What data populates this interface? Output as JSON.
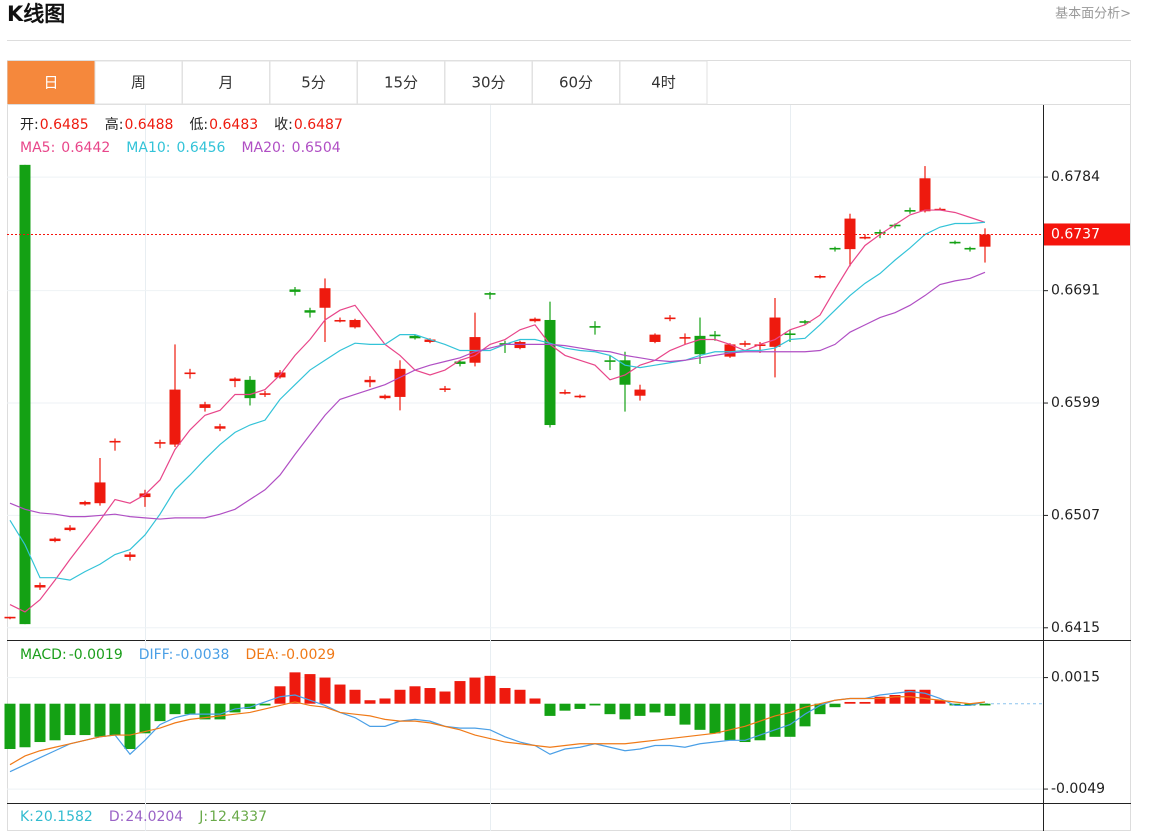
{
  "header": {
    "title": "K线图",
    "link": "基本面分析>"
  },
  "tabs": [
    "日",
    "周",
    "月",
    "5分",
    "15分",
    "30分",
    "60分",
    "4时"
  ],
  "chart_data": [
    {
      "type": "candlestick",
      "legend": [
        {
          "label": "开:",
          "value": 0.6485
        },
        {
          "label": "高:",
          "value": 0.6488
        },
        {
          "label": "低:",
          "value": 0.6483
        },
        {
          "label": "收:",
          "value": 0.6487
        }
      ],
      "open": [
        0.6423,
        0.6794,
        0.6448,
        0.6486,
        0.6495,
        0.6516,
        0.6517,
        0.6567,
        0.6473,
        0.6522,
        0.6566,
        0.6565,
        0.6623,
        0.6595,
        0.6578,
        0.6617,
        0.6618,
        0.6606,
        0.662,
        0.6692,
        0.6675,
        0.6677,
        0.6666,
        0.6661,
        0.6616,
        0.6603,
        0.6604,
        0.6654,
        0.6649,
        0.661,
        0.6633,
        0.6632,
        0.6689,
        0.6648,
        0.6644,
        0.6666,
        0.6667,
        0.6607,
        0.6604,
        0.6662,
        0.6634,
        0.6634,
        0.6605,
        0.6649,
        0.6668,
        0.6652,
        0.6654,
        0.6655,
        0.6637,
        0.6647,
        0.6646,
        0.6645,
        0.6656,
        0.6666,
        0.6702,
        0.6726,
        0.6725,
        0.6734,
        0.6739,
        0.6745,
        0.6757,
        0.6756,
        0.6757,
        0.6731,
        0.6726,
        0.6727
      ],
      "high": [
        0.6424,
        0.6794,
        0.6452,
        0.6489,
        0.6499,
        0.6519,
        0.6554,
        0.657,
        0.6477,
        0.6528,
        0.6569,
        0.6647,
        0.6627,
        0.66,
        0.6582,
        0.662,
        0.6621,
        0.6609,
        0.6626,
        0.6694,
        0.6677,
        0.6701,
        0.6669,
        0.6668,
        0.6621,
        0.6606,
        0.6634,
        0.6655,
        0.6652,
        0.6613,
        0.6634,
        0.6673,
        0.669,
        0.665,
        0.665,
        0.6669,
        0.6682,
        0.661,
        0.6606,
        0.6666,
        0.6638,
        0.6641,
        0.6614,
        0.6656,
        0.6671,
        0.6656,
        0.6669,
        0.6658,
        0.6648,
        0.665,
        0.6649,
        0.6685,
        0.6659,
        0.6667,
        0.6704,
        0.6727,
        0.6754,
        0.6737,
        0.6741,
        0.6746,
        0.6759,
        0.6793,
        0.6759,
        0.6732,
        0.6727,
        0.6742
      ],
      "low": [
        0.6422,
        0.6418,
        0.6446,
        0.6485,
        0.6494,
        0.6515,
        0.6515,
        0.656,
        0.647,
        0.6514,
        0.6562,
        0.6563,
        0.6619,
        0.6592,
        0.6576,
        0.6612,
        0.6597,
        0.6604,
        0.6619,
        0.6687,
        0.6669,
        0.6649,
        0.6665,
        0.666,
        0.6612,
        0.6602,
        0.6593,
        0.6651,
        0.6648,
        0.6608,
        0.6629,
        0.6629,
        0.6684,
        0.664,
        0.6643,
        0.6665,
        0.6579,
        0.6606,
        0.6603,
        0.6655,
        0.6626,
        0.6592,
        0.6601,
        0.6648,
        0.6666,
        0.6647,
        0.6631,
        0.665,
        0.6636,
        0.6645,
        0.664,
        0.662,
        0.6649,
        0.6663,
        0.6701,
        0.6723,
        0.6711,
        0.6733,
        0.6734,
        0.6742,
        0.6754,
        0.6755,
        0.6757,
        0.6729,
        0.6723,
        0.6714
      ],
      "close": [
        0.6424,
        0.6418,
        0.645,
        0.6488,
        0.6497,
        0.6518,
        0.6534,
        0.6568,
        0.6475,
        0.6525,
        0.6567,
        0.661,
        0.6624,
        0.6598,
        0.658,
        0.6619,
        0.6603,
        0.6607,
        0.6624,
        0.669,
        0.6673,
        0.6693,
        0.6667,
        0.6667,
        0.6618,
        0.6605,
        0.6627,
        0.6652,
        0.6651,
        0.6611,
        0.6631,
        0.6653,
        0.6688,
        0.6647,
        0.6649,
        0.6668,
        0.6581,
        0.6608,
        0.6605,
        0.6661,
        0.6633,
        0.6614,
        0.661,
        0.6655,
        0.6669,
        0.6653,
        0.6639,
        0.6654,
        0.6647,
        0.6648,
        0.6647,
        0.6669,
        0.6655,
        0.6665,
        0.6703,
        0.6725,
        0.675,
        0.6735,
        0.6738,
        0.6744,
        0.6756,
        0.6783,
        0.6758,
        0.673,
        0.6725,
        0.6737
      ],
      "up_color": "#ee1a0e",
      "down_color": "#14a114",
      "series": [
        {
          "name": "MA5:",
          "color": "#e8468a",
          "legend_value": 0.6442,
          "values": [
            0.6434,
            0.6428,
            0.6438,
            0.6454,
            0.6471,
            0.6487,
            0.6503,
            0.652,
            0.6517,
            0.6524,
            0.6536,
            0.6561,
            0.6577,
            0.6589,
            0.6593,
            0.6606,
            0.6606,
            0.661,
            0.6622,
            0.6638,
            0.6651,
            0.6667,
            0.6675,
            0.6679,
            0.6663,
            0.6647,
            0.6638,
            0.6626,
            0.6622,
            0.6626,
            0.6634,
            0.6638,
            0.6647,
            0.6651,
            0.6659,
            0.6663,
            0.6647,
            0.6638,
            0.6634,
            0.663,
            0.6618,
            0.6622,
            0.663,
            0.6634,
            0.6642,
            0.6647,
            0.6651,
            0.6651,
            0.6647,
            0.6642,
            0.6647,
            0.6651,
            0.6659,
            0.6663,
            0.6671,
            0.6692,
            0.6712,
            0.6728,
            0.6737,
            0.6745,
            0.6753,
            0.6757,
            0.6757,
            0.6755,
            0.6751,
            0.6747
          ]
        },
        {
          "name": "MA10:",
          "color": "#33c3d8",
          "legend_value": 0.6456,
          "values": [
            0.6503,
            0.6483,
            0.6456,
            0.6456,
            0.6454,
            0.6461,
            0.6467,
            0.6475,
            0.6479,
            0.6491,
            0.6508,
            0.6528,
            0.654,
            0.6553,
            0.6565,
            0.6575,
            0.6581,
            0.6585,
            0.6602,
            0.6614,
            0.6626,
            0.6634,
            0.6642,
            0.6648,
            0.6647,
            0.6647,
            0.6655,
            0.6655,
            0.6651,
            0.6647,
            0.6642,
            0.6642,
            0.6642,
            0.6647,
            0.6651,
            0.6651,
            0.6648,
            0.6644,
            0.6642,
            0.6641,
            0.6638,
            0.663,
            0.6628,
            0.663,
            0.6632,
            0.6634,
            0.6638,
            0.6641,
            0.6641,
            0.6642,
            0.6642,
            0.6644,
            0.6651,
            0.6652,
            0.6663,
            0.6675,
            0.6687,
            0.6697,
            0.6705,
            0.6716,
            0.6726,
            0.6737,
            0.6743,
            0.6746,
            0.6746,
            0.6747
          ]
        },
        {
          "name": "MA20:",
          "color": "#b04fc4",
          "legend_value": 0.6504,
          "values": [
            0.6517,
            0.6512,
            0.6509,
            0.6508,
            0.6506,
            0.6506,
            0.6507,
            0.6508,
            0.6506,
            0.6505,
            0.6504,
            0.6505,
            0.6505,
            0.6505,
            0.6508,
            0.6512,
            0.652,
            0.6528,
            0.654,
            0.6557,
            0.6573,
            0.6589,
            0.6602,
            0.6606,
            0.661,
            0.6614,
            0.662,
            0.6626,
            0.663,
            0.6633,
            0.6636,
            0.6641,
            0.6644,
            0.6647,
            0.6647,
            0.6647,
            0.6647,
            0.6646,
            0.6644,
            0.6642,
            0.6641,
            0.6638,
            0.6636,
            0.6634,
            0.6633,
            0.6634,
            0.6636,
            0.6638,
            0.664,
            0.6641,
            0.6641,
            0.6641,
            0.6641,
            0.6641,
            0.6642,
            0.6647,
            0.6657,
            0.6663,
            0.6669,
            0.6673,
            0.6679,
            0.6687,
            0.6696,
            0.6699,
            0.6701,
            0.6706
          ]
        }
      ],
      "ylim": [
        0.6405,
        0.6843
      ],
      "yticks": [
        0.6415,
        0.6507,
        0.6599,
        0.6691,
        0.6784
      ],
      "grid": true,
      "last_price": 0.6737,
      "last_price_color": "#f5140c"
    },
    {
      "type": "macd",
      "histogram": {
        "name": "MACD:",
        "color": "#1b9e1b",
        "legend_value": -0.0019,
        "values": [
          -0.0026,
          -0.0025,
          -0.0022,
          -0.0021,
          -0.0018,
          -0.0018,
          -0.0019,
          -0.0018,
          -0.0026,
          -0.0017,
          -0.001,
          -0.0006,
          -0.0006,
          -0.0009,
          -0.0009,
          -0.0005,
          -0.0003,
          -0.0001,
          0.001,
          0.0018,
          0.0017,
          0.0015,
          0.0011,
          0.0008,
          0.0002,
          0.0003,
          0.0008,
          0.001,
          0.0009,
          0.0007,
          0.0013,
          0.0015,
          0.0016,
          0.0009,
          0.0008,
          0.0003,
          -0.0007,
          -0.0004,
          -0.0003,
          -0.0001,
          -0.0006,
          -0.0009,
          -0.0007,
          -0.0005,
          -0.0007,
          -0.0012,
          -0.0015,
          -0.0017,
          -0.0021,
          -0.0022,
          -0.0021,
          -0.0019,
          -0.0019,
          -0.0013,
          -0.0006,
          -0.0002,
          0.0001,
          0.0001,
          0.0004,
          0.0005,
          0.0008,
          0.0008,
          0.0002,
          -0.0001,
          -0.0001,
          -0.0001
        ]
      },
      "up_color": "#ee1a0e",
      "down_color": "#14a114",
      "series": [
        {
          "name": "DIFF:",
          "color": "#4a9fe6",
          "legend_value": -0.0038,
          "values": [
            -0.0039,
            -0.0035,
            -0.0031,
            -0.0027,
            -0.0023,
            -0.0021,
            -0.0019,
            -0.0018,
            -0.0029,
            -0.0021,
            -0.0012,
            -0.0008,
            -0.0006,
            -0.0006,
            -0.0006,
            -0.0003,
            -0.0002,
            0.0001,
            0.0004,
            0.0005,
            0.0002,
            -0.0001,
            -0.0005,
            -0.0008,
            -0.0013,
            -0.0013,
            -0.001,
            -0.0009,
            -0.001,
            -0.0013,
            -0.0014,
            -0.0014,
            -0.0015,
            -0.0019,
            -0.0022,
            -0.0024,
            -0.0029,
            -0.0026,
            -0.0025,
            -0.0023,
            -0.0025,
            -0.0027,
            -0.0026,
            -0.0024,
            -0.0024,
            -0.0025,
            -0.0023,
            -0.0022,
            -0.0021,
            -0.0021,
            -0.0018,
            -0.0015,
            -0.0012,
            -0.0006,
            -0.0001,
            0.0002,
            0.0003,
            0.0003,
            0.0005,
            0.0006,
            0.0007,
            0.0006,
            0.0003,
            -0.0001,
            -0.0001,
            0.0001
          ]
        },
        {
          "name": "DEA:",
          "color": "#f07a18",
          "legend_value": -0.0029,
          "values": [
            -0.0035,
            -0.003,
            -0.0027,
            -0.0025,
            -0.0023,
            -0.0021,
            -0.0019,
            -0.0018,
            -0.0018,
            -0.0016,
            -0.0014,
            -0.0011,
            -0.0009,
            -0.0008,
            -0.0007,
            -0.0006,
            -0.0005,
            -0.0003,
            -0.0001,
            0.0001,
            -0.0001,
            -0.0002,
            -0.0005,
            -0.0006,
            -0.0007,
            -0.0009,
            -0.001,
            -0.001,
            -0.0011,
            -0.0013,
            -0.0015,
            -0.0018,
            -0.002,
            -0.0022,
            -0.0023,
            -0.0024,
            -0.0025,
            -0.0024,
            -0.0023,
            -0.0023,
            -0.0023,
            -0.0023,
            -0.0022,
            -0.0021,
            -0.002,
            -0.0019,
            -0.0018,
            -0.0017,
            -0.0015,
            -0.0013,
            -0.001,
            -0.0007,
            -0.0005,
            -0.0002,
            0.0,
            0.0002,
            0.0003,
            0.0003,
            0.0003,
            0.0004,
            0.0004,
            0.0003,
            0.0002,
            0.0001,
            0.0,
            0.0001
          ]
        }
      ],
      "ylim": [
        -0.0057,
        0.0036
      ],
      "yticks": [
        -0.0049,
        0.0015
      ]
    },
    {
      "type": "kdj",
      "series": [
        {
          "name": "K:",
          "color": "#33bcd0",
          "legend_value": 20.1582
        },
        {
          "name": "D:",
          "color": "#9a63c6",
          "legend_value": 24.0204
        },
        {
          "name": "J:",
          "color": "#6aaa4a",
          "legend_value": 12.4337
        }
      ]
    }
  ]
}
